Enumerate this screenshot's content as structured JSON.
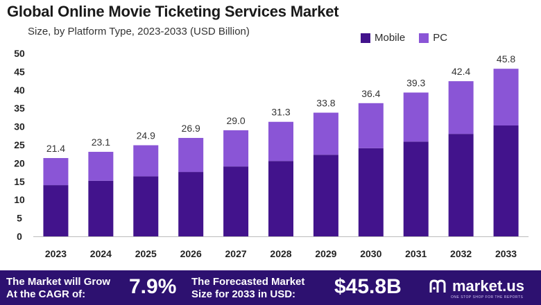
{
  "header": {
    "title": "Global Online Movie Ticketing Services Market",
    "subtitle": "Size, by Platform Type, 2023-2033 (USD Billion)"
  },
  "colors": {
    "mobile": "#42138c",
    "pc": "#8a55d6",
    "footer_bg": "#2d1170"
  },
  "chart_data": {
    "type": "bar",
    "stacked": true,
    "categories": [
      "2023",
      "2024",
      "2025",
      "2026",
      "2027",
      "2028",
      "2029",
      "2030",
      "2031",
      "2032",
      "2033"
    ],
    "series": [
      {
        "name": "Mobile",
        "values": [
          14.0,
          15.2,
          16.4,
          17.6,
          19.1,
          20.6,
          22.3,
          24.1,
          25.9,
          28.0,
          30.3
        ]
      },
      {
        "name": "PC",
        "values": [
          7.4,
          7.9,
          8.5,
          9.3,
          9.9,
          10.7,
          11.5,
          12.3,
          13.4,
          14.4,
          15.5
        ]
      }
    ],
    "totals": [
      "21.4",
      "23.1",
      "24.9",
      "26.9",
      "29.0",
      "31.3",
      "33.8",
      "36.4",
      "39.3",
      "42.4",
      "45.8"
    ],
    "yticks": [
      0,
      5,
      10,
      15,
      20,
      25,
      30,
      35,
      40,
      45,
      50
    ],
    "ylim": [
      0,
      50
    ],
    "grid": false,
    "legend_position": "top-right"
  },
  "footer": {
    "cagr_label_line1": "The Market will Grow",
    "cagr_label_line2": "At the CAGR of:",
    "cagr_value": "7.9%",
    "forecast_label_line1": "The Forecasted Market",
    "forecast_label_line2": "Size for 2033 in USD:",
    "forecast_value": "$45.8B",
    "brand_name": "market.us",
    "brand_tagline": "ONE STOP SHOP FOR THE REPORTS"
  }
}
